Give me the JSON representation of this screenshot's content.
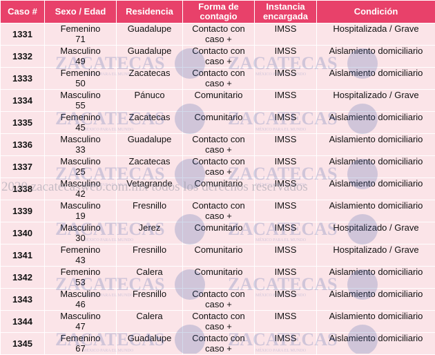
{
  "headers": [
    "Caso #",
    "Sexo / Edad",
    "Residencia",
    "Forma de contagio",
    "Instancia encargada",
    "Condición"
  ],
  "rows": [
    {
      "caso": "1331",
      "sexo": "Femenino",
      "edad": "71",
      "residencia": "Guadalupe",
      "contagio": "Contacto con caso +",
      "instancia": "IMSS",
      "condicion": "Hospitalizada / Grave"
    },
    {
      "caso": "1332",
      "sexo": "Masculino",
      "edad": "49",
      "residencia": "Guadalupe",
      "contagio": "Contacto con caso +",
      "instancia": "IMSS",
      "condicion": "Aislamiento domiciliario"
    },
    {
      "caso": "1333",
      "sexo": "Femenino",
      "edad": "50",
      "residencia": "Zacatecas",
      "contagio": "Contacto con caso +",
      "instancia": "IMSS",
      "condicion": "Aislamiento domiciliario"
    },
    {
      "caso": "1334",
      "sexo": "Masculino",
      "edad": "55",
      "residencia": "Pánuco",
      "contagio": "Comunitario",
      "instancia": "IMSS",
      "condicion": "Hospitalizado / Grave"
    },
    {
      "caso": "1335",
      "sexo": "Femenino",
      "edad": "45",
      "residencia": "Zacatecas",
      "contagio": "Comunitario",
      "instancia": "IMSS",
      "condicion": "Aislamiento domiciliario"
    },
    {
      "caso": "1336",
      "sexo": "Masculino",
      "edad": "33",
      "residencia": "Guadalupe",
      "contagio": "Contacto con caso +",
      "instancia": "IMSS",
      "condicion": "Aislamiento domiciliario"
    },
    {
      "caso": "1337",
      "sexo": "Masculino",
      "edad": "25",
      "residencia": "Zacatecas",
      "contagio": "Contacto con caso +",
      "instancia": "IMSS",
      "condicion": "Aislamiento domiciliario"
    },
    {
      "caso": "1338",
      "sexo": "Masculino",
      "edad": "42",
      "residencia": "Vetagrande",
      "contagio": "Comunitario",
      "instancia": "IMSS",
      "condicion": "Aislamiento domiciliario"
    },
    {
      "caso": "1339",
      "sexo": "Masculino",
      "edad": "19",
      "residencia": "Fresnillo",
      "contagio": "Contacto con caso +",
      "instancia": "IMSS",
      "condicion": "Aislamiento domiciliario"
    },
    {
      "caso": "1340",
      "sexo": "Masculino",
      "edad": "30",
      "residencia": "Jerez",
      "contagio": "Comunitario",
      "instancia": "IMSS",
      "condicion": "Hospitalizado / Grave"
    },
    {
      "caso": "1341",
      "sexo": "Femenino",
      "edad": "43",
      "residencia": "Fresnillo",
      "contagio": "Comunitario",
      "instancia": "IMSS",
      "condicion": "Hospitalizado / Grave"
    },
    {
      "caso": "1342",
      "sexo": "Femenino",
      "edad": "53",
      "residencia": "Calera",
      "contagio": "Comunitario",
      "instancia": "IMSS",
      "condicion": "Aislamiento domiciliario"
    },
    {
      "caso": "1343",
      "sexo": "Masculino",
      "edad": "46",
      "residencia": "Fresnillo",
      "contagio": "Contacto con caso +",
      "instancia": "IMSS",
      "condicion": "Aislamiento domiciliario"
    },
    {
      "caso": "1344",
      "sexo": "Masculino",
      "edad": "47",
      "residencia": "Calera",
      "contagio": "Contacto con caso +",
      "instancia": "IMSS",
      "condicion": "Aislamiento domiciliario"
    },
    {
      "caso": "1345",
      "sexo": "Femenino",
      "edad": "67",
      "residencia": "Guadalupe",
      "contagio": "Contacto con caso +",
      "instancia": "IMSS",
      "condicion": "Aislamiento domiciliario"
    }
  ],
  "watermark": {
    "brand": "ZACATECAS",
    "tagline": "MÉXICO PARA EL MUNDO",
    "copyright": "2020 zacatecasweb.com.mx todos los derechos reservados"
  },
  "colors": {
    "header_bg": "#e8416a",
    "header_text": "#ffffff",
    "row_bg": "#fbe4e8"
  }
}
